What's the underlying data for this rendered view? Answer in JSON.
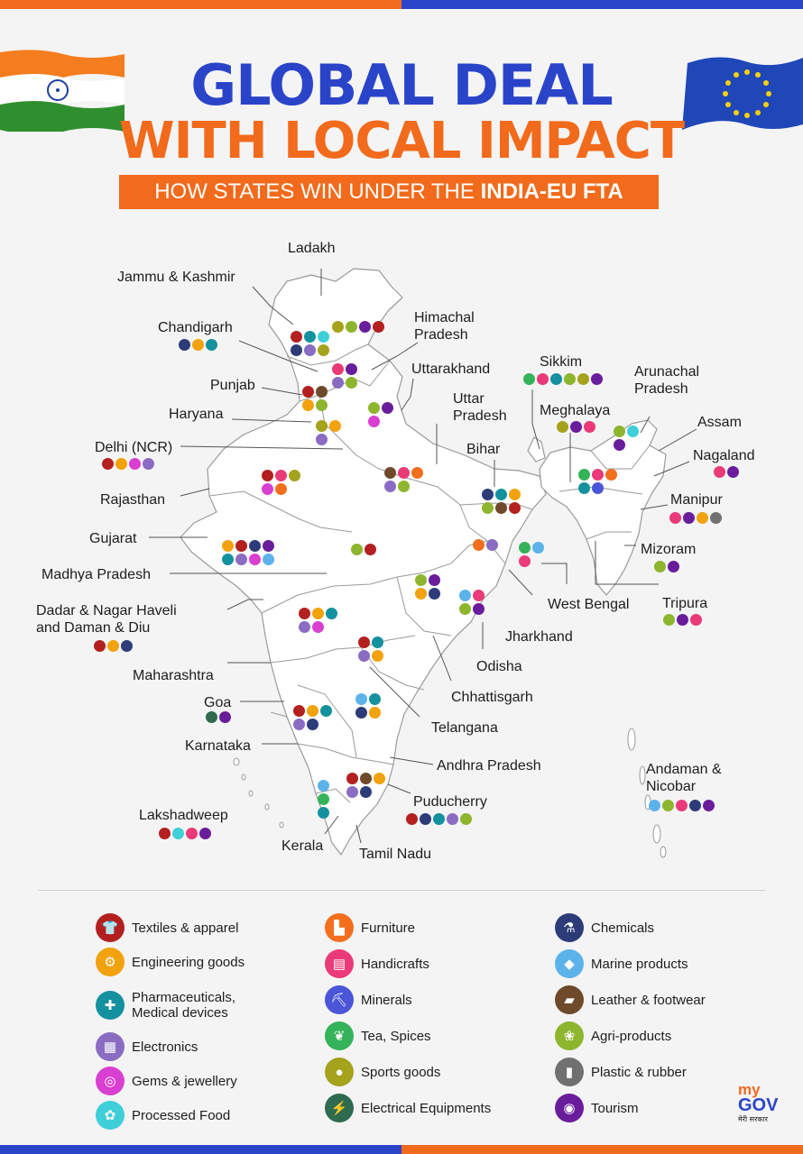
{
  "title_line1": "GLOBAL DEAL",
  "title_line2": "WITH LOCAL IMPACT",
  "subtitle_normal": "HOW STATES WIN UNDER THE ",
  "subtitle_bold": "INDIA-EU FTA",
  "colors": {
    "title_blue": "#2a44c9",
    "title_orange": "#f26a1b",
    "bar_orange": "#f26a1b",
    "bar_blue": "#2a44c9"
  },
  "categories": [
    {
      "id": "textiles",
      "label": "Textiles & apparel",
      "color": "#b3201f",
      "icon": "shirt-icon"
    },
    {
      "id": "engineering",
      "label": "Engineering goods",
      "color": "#f2a20c",
      "icon": "gear-icon"
    },
    {
      "id": "pharma",
      "label": "Pharmaceuticals,\nMedical devices",
      "color": "#14919e",
      "icon": "pill-icon"
    },
    {
      "id": "electronics",
      "label": "Electronics",
      "color": "#8a6cc2",
      "icon": "chip-icon"
    },
    {
      "id": "gems",
      "label": "Gems & jewellery",
      "color": "#d93fd0",
      "icon": "ring-icon"
    },
    {
      "id": "food",
      "label": "Processed Food",
      "color": "#3fcfd8",
      "icon": "food-icon"
    },
    {
      "id": "furniture",
      "label": "Furniture",
      "color": "#f36f1e",
      "icon": "chair-icon"
    },
    {
      "id": "handicrafts",
      "label": "Handicrafts",
      "color": "#ea3a77",
      "icon": "vase-icon"
    },
    {
      "id": "minerals",
      "label": "Minerals",
      "color": "#4a55d8",
      "icon": "pickaxe-icon"
    },
    {
      "id": "tea",
      "label": "Tea, Spices",
      "color": "#35b35a",
      "icon": "leaf-icon"
    },
    {
      "id": "sports",
      "label": "Sports goods",
      "color": "#a5a21c",
      "icon": "ball-icon"
    },
    {
      "id": "electrical",
      "label": "Electrical Equipments",
      "color": "#2e6b4f",
      "icon": "plug-icon"
    },
    {
      "id": "chemicals",
      "label": "Chemicals",
      "color": "#2d3c78",
      "icon": "flask-icon"
    },
    {
      "id": "marine",
      "label": "Marine products",
      "color": "#5cb3ea",
      "icon": "fish-icon"
    },
    {
      "id": "leather",
      "label": "Leather & footwear",
      "color": "#6e4a2a",
      "icon": "shoe-icon"
    },
    {
      "id": "agri",
      "label": "Agri-products",
      "color": "#8db52e",
      "icon": "wheat-icon"
    },
    {
      "id": "plastic",
      "label": "Plastic & rubber",
      "color": "#707070",
      "icon": "bottle-icon"
    },
    {
      "id": "tourism",
      "label": "Tourism",
      "color": "#6a1d9b",
      "icon": "globe-icon"
    }
  ],
  "states": [
    {
      "name": "Ladakh",
      "dots": [
        "sports",
        "agri",
        "tourism",
        "textiles"
      ]
    },
    {
      "name": "Jammu & Kashmir",
      "dots": [
        "textiles",
        "pharma",
        "food",
        "chemicals",
        "electronics",
        "sports"
      ]
    },
    {
      "name": "Chandigarh",
      "dots": [
        "chemicals",
        "engineering",
        "pharma"
      ]
    },
    {
      "name": "Himachal\nPradesh",
      "dots": [
        "handicrafts",
        "tourism",
        "electronics",
        "agri"
      ]
    },
    {
      "name": "Uttarakhand",
      "dots": [
        "agri",
        "tourism",
        "gems"
      ]
    },
    {
      "name": "Punjab",
      "dots": [
        "textiles",
        "leather",
        "engineering",
        "agri"
      ]
    },
    {
      "name": "Haryana",
      "dots": [
        "sports",
        "engineering",
        "electronics"
      ]
    },
    {
      "name": "Delhi (NCR)",
      "dots": [
        "textiles",
        "engineering",
        "gems",
        "electronics"
      ]
    },
    {
      "name": "Uttar\nPradesh",
      "dots": [
        "leather",
        "handicrafts",
        "furniture",
        "electronics",
        "agri"
      ]
    },
    {
      "name": "Rajasthan",
      "dots": [
        "textiles",
        "handicrafts",
        "sports",
        "gems",
        "furniture"
      ]
    },
    {
      "name": "Bihar",
      "dots": [
        "chemicals",
        "pharma",
        "engineering",
        "agri",
        "leather",
        "textiles"
      ]
    },
    {
      "name": "Sikkim",
      "dots": [
        "tea",
        "handicrafts",
        "pharma",
        "agri",
        "sports",
        "tourism"
      ]
    },
    {
      "name": "Arunachal\nPradesh",
      "dots": [
        "agri",
        "food",
        "tourism"
      ]
    },
    {
      "name": "Meghalaya",
      "dots": [
        "sports",
        "tourism",
        "handicrafts"
      ]
    },
    {
      "name": "Assam",
      "dots": [
        "tea",
        "handicrafts",
        "furniture",
        "pharma",
        "minerals"
      ]
    },
    {
      "name": "Nagaland",
      "dots": [
        "handicrafts",
        "tourism"
      ]
    },
    {
      "name": "Manipur",
      "dots": [
        "handicrafts",
        "tourism",
        "engineering",
        "plastic"
      ]
    },
    {
      "name": "Gujarat",
      "dots": [
        "engineering",
        "textiles",
        "chemicals",
        "tourism",
        "pharma",
        "electronics",
        "gems",
        "marine"
      ]
    },
    {
      "name": "Madhya Pradesh",
      "dots": [
        "agri",
        "textiles"
      ]
    },
    {
      "name": "Jharkhand",
      "dots": [
        "furniture",
        "electronics"
      ]
    },
    {
      "name": "West Bengal",
      "dots": [
        "tea",
        "marine",
        "handicrafts"
      ]
    },
    {
      "name": "Mizoram",
      "dots": [
        "agri",
        "tourism"
      ]
    },
    {
      "name": "Tripura",
      "dots": [
        "agri",
        "tourism",
        "handicrafts"
      ]
    },
    {
      "name": "Chhattisgarh",
      "dots": [
        "agri",
        "tourism",
        "engineering",
        "chemicals"
      ]
    },
    {
      "name": "Odisha",
      "dots": [
        "marine",
        "handicrafts",
        "agri",
        "tourism"
      ]
    },
    {
      "name": "Dadar & Nagar Haveli\nand Daman & Diu",
      "dots": [
        "textiles",
        "engineering",
        "chemicals"
      ]
    },
    {
      "name": "Maharashtra",
      "dots": [
        "textiles",
        "engineering",
        "pharma",
        "electronics",
        "gems"
      ]
    },
    {
      "name": "Telangana",
      "dots": [
        "textiles",
        "pharma",
        "electronics",
        "engineering"
      ]
    },
    {
      "name": "Goa",
      "dots": [
        "electrical",
        "tourism"
      ]
    },
    {
      "name": "Karnataka",
      "dots": [
        "textiles",
        "engineering",
        "pharma",
        "electronics",
        "chemicals"
      ]
    },
    {
      "name": "Andhra Pradesh",
      "dots": [
        "marine",
        "pharma",
        "chemicals",
        "engineering"
      ]
    },
    {
      "name": "Andaman &\nNicobar",
      "dots": [
        "marine",
        "agri",
        "handicrafts",
        "chemicals",
        "tourism"
      ]
    },
    {
      "name": "Puducherry",
      "dots": [
        "textiles",
        "chemicals",
        "pharma",
        "electronics",
        "agri"
      ]
    },
    {
      "name": "Tamil Nadu",
      "dots": [
        "textiles",
        "leather",
        "engineering",
        "electronics",
        "chemicals"
      ]
    },
    {
      "name": "Kerala",
      "dots": [
        "marine",
        "tea",
        "pharma"
      ]
    },
    {
      "name": "Lakshadweep",
      "dots": [
        "textiles",
        "food",
        "handicrafts",
        "tourism"
      ]
    }
  ],
  "logo_text_top": "my",
  "logo_text_main": "GOV",
  "logo_text_hindi": "मेरी सरकार"
}
